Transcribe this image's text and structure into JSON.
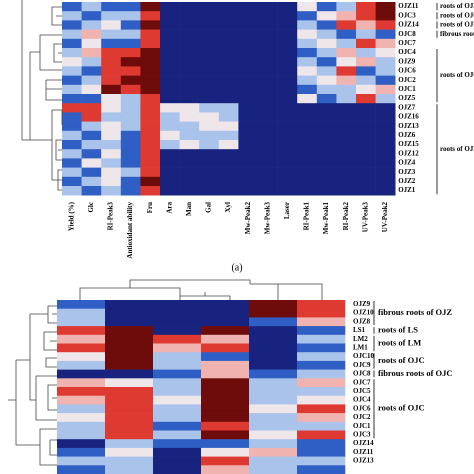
{
  "figure": {
    "panel_a": {
      "column_labels": [
        "Yield (%)",
        "Glc",
        "RI-Peak3",
        "Antioxidant ability",
        "Fru",
        "Ara",
        "Man",
        "Gal",
        "Xyl",
        "Mw-Peak2",
        "Mw-Peak3",
        "Laser",
        "RI-Peak1",
        "Mw-Peak1",
        "RI-Peak2",
        "UV-Peak3",
        "UV-Peak2"
      ],
      "row_labels": [
        "OJZ11",
        "OJC3",
        "OJZ14",
        "OJC8",
        "OJC7",
        "OJC4",
        "OJZ9",
        "OJC6",
        "OJC2",
        "OJC1",
        "OJZ5",
        "OJZ7",
        "OJZ16",
        "OJZ13",
        "OJZ6",
        "OJZ15",
        "OJZ12",
        "OJZ4",
        "OJZ3",
        "OJZ2",
        "OJZ1"
      ],
      "groups": [
        "roots of OJZ",
        "roots of OJC",
        "roots of OJZ",
        "fibrous roots of OJC",
        "roots of OJC",
        "roots of OJZ"
      ],
      "caption": "(a)"
    },
    "panel_b": {
      "row_labels": [
        "OJZ9",
        "OJZ10",
        "OJZ8",
        "LS1",
        "LM2",
        "LM1",
        "OJC10",
        "OJC9",
        "OJC8",
        "OJC7",
        "OJC5",
        "OJC4",
        "OJC6",
        "OJC2",
        "OJC1",
        "OJC3",
        "OJZ14",
        "OJZ11",
        "OJZ13"
      ],
      "groups": [
        "fibrous roots of OJZ",
        "roots of LS",
        "roots of LM",
        "roots of OJC",
        "fibrous roots of OJC",
        "roots of OJC"
      ]
    }
  }
}
